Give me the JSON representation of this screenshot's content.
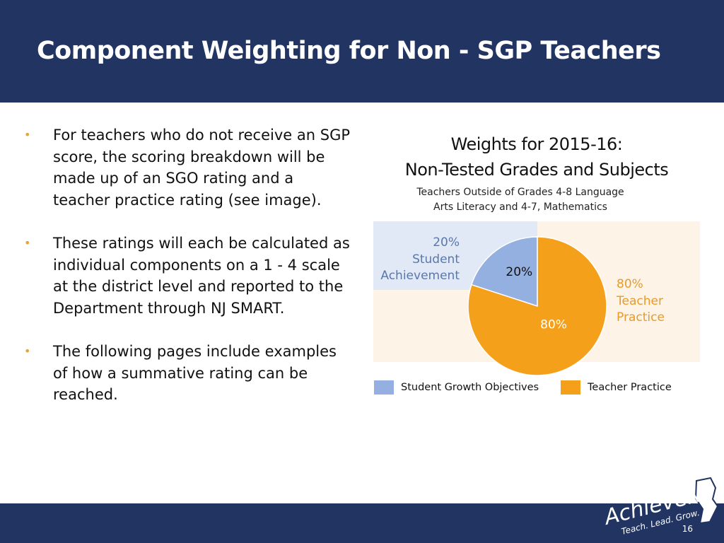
{
  "header": {
    "title": "Component Weighting for Non - SGP Teachers"
  },
  "bullets": [
    "For teachers who do not receive an SGP score, the scoring breakdown will be made up of an SGO rating and a teacher practice rating (see image).",
    "These ratings will each be calculated as individual components on a 1 - 4 scale at the district level and reported to the Department through NJ SMART.",
    "The following pages include examples of how a summative rating can be reached."
  ],
  "chart_data": {
    "type": "pie",
    "title": "Weights for 2015-16:",
    "subtitle": "Non-Tested Grades and Subjects",
    "note": "Teachers Outside of Grades 4-8 Language Arts Literacy and 4-7, Mathematics",
    "categories": [
      "Student Growth Objectives",
      "Teacher Practice"
    ],
    "values": [
      20,
      80
    ],
    "value_labels": [
      "20%",
      "80%"
    ],
    "colors": [
      "#93b0e0",
      "#f5a01a"
    ],
    "annotations": [
      {
        "value": "20%",
        "text": "Student Achievement"
      },
      {
        "value": "80%",
        "text": "Teacher Practice"
      }
    ]
  },
  "footer": {
    "logo": "AchieveNJ",
    "tagline": "Teach. Lead. Grow.",
    "page": "16"
  }
}
